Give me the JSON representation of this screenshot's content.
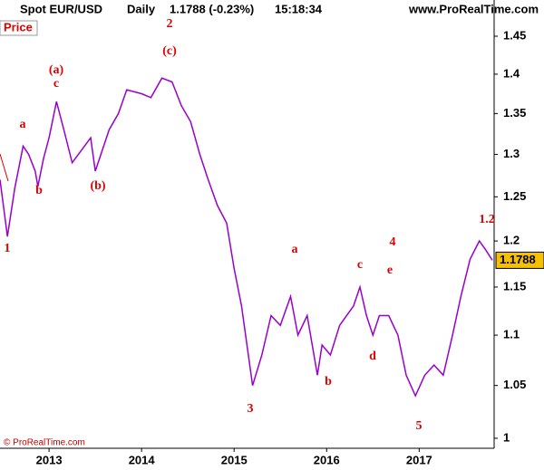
{
  "chart_data": {
    "type": "line",
    "title": [
      "Spot EUR/USD",
      "Daily",
      "1.1788 (-0.23%)",
      "15:18:34"
    ],
    "source": "www.ProRealTime.com",
    "panel_label": "Price",
    "copyright": "© ProRealTime.com",
    "last_price": 1.1788,
    "log_scale": true,
    "x": [
      2012.47,
      2012.55,
      2012.63,
      2012.72,
      2012.78,
      2012.85,
      2012.88,
      2012.94,
      2013.0,
      2013.08,
      2013.16,
      2013.25,
      2013.35,
      2013.45,
      2013.5,
      2013.65,
      2013.75,
      2013.84,
      2014.0,
      2014.1,
      2014.22,
      2014.33,
      2014.43,
      2014.53,
      2014.63,
      2014.72,
      2014.82,
      2014.92,
      2015.0,
      2015.08,
      2015.2,
      2015.3,
      2015.4,
      2015.5,
      2015.61,
      2015.69,
      2015.79,
      2015.9,
      2015.95,
      2016.04,
      2016.14,
      2016.29,
      2016.36,
      2016.43,
      2016.5,
      2016.57,
      2016.67,
      2016.77,
      2016.86,
      2016.96,
      2017.06,
      2017.16,
      2017.26,
      2017.36,
      2017.45,
      2017.55,
      2017.65,
      2017.72,
      2017.79
    ],
    "series": [
      {
        "name": "EUR/USD",
        "color": "#9900cc",
        "values": [
          1.27,
          1.205,
          1.26,
          1.31,
          1.3,
          1.28,
          1.262,
          1.295,
          1.32,
          1.365,
          1.33,
          1.29,
          1.305,
          1.32,
          1.28,
          1.33,
          1.35,
          1.38,
          1.375,
          1.37,
          1.395,
          1.39,
          1.36,
          1.34,
          1.3,
          1.27,
          1.24,
          1.22,
          1.17,
          1.13,
          1.05,
          1.08,
          1.12,
          1.11,
          1.14,
          1.1,
          1.12,
          1.06,
          1.09,
          1.08,
          1.11,
          1.13,
          1.15,
          1.12,
          1.1,
          1.12,
          1.12,
          1.1,
          1.06,
          1.04,
          1.06,
          1.07,
          1.06,
          1.1,
          1.14,
          1.18,
          1.2,
          1.19,
          1.1788
        ]
      }
    ],
    "annotations": [
      "1",
      "a",
      "b",
      "c",
      "(a)",
      "(b)",
      "(c)",
      "2",
      "3",
      "a",
      "b",
      "c",
      "d",
      "e",
      "4",
      "5",
      "1.2"
    ],
    "xlim": [
      2012.47,
      2017.81
    ],
    "xticks": [
      2013,
      2014,
      2015,
      2016,
      2017
    ],
    "ylim": [
      0.9908,
      1.472
    ],
    "yticks": [
      1,
      1.05,
      1.1,
      1.15,
      1.2,
      1.25,
      1.3,
      1.35,
      1.4,
      1.45
    ]
  }
}
